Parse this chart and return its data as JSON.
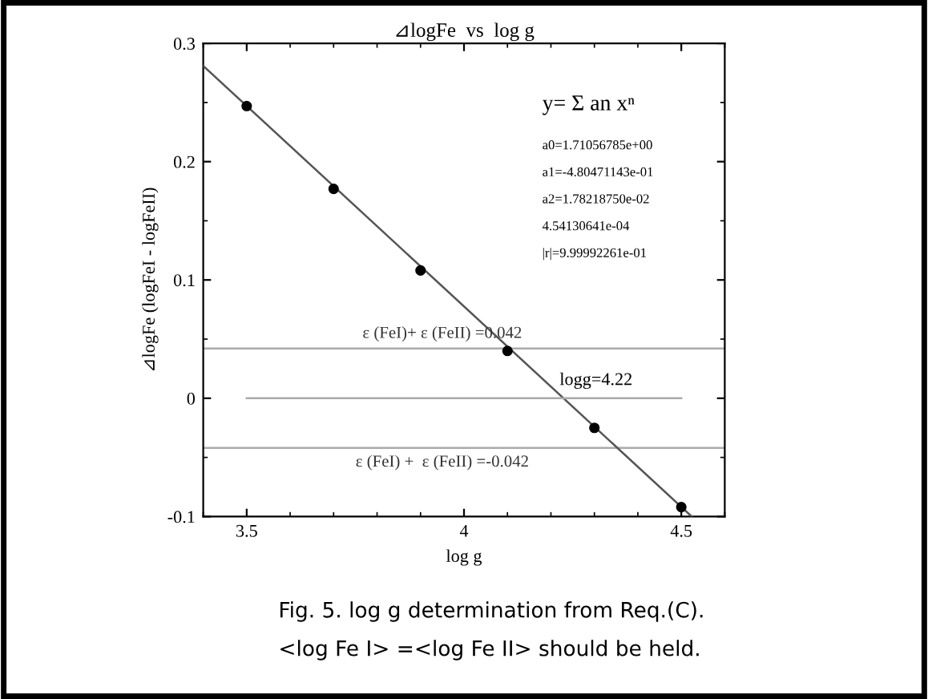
{
  "chart_data": {
    "type": "scatter",
    "title": "⊿logFe  vs  log g",
    "xlabel": "log g",
    "ylabel": "⊿logFe (logFeI - logFeII)",
    "series": [
      {
        "marker": "circle",
        "color": "#000000",
        "x": [
          3.5,
          3.7,
          3.9,
          4.1,
          4.3,
          4.5
        ],
        "values": [
          0.247,
          0.177,
          0.108,
          0.04,
          -0.025,
          -0.092
        ]
      },
      {
        "type": "line",
        "marker": "none",
        "color": "#555555",
        "x": [
          3.4,
          4.524
        ],
        "values": [
          0.281,
          -0.1
        ]
      },
      {
        "type": "line",
        "marker": "none",
        "color": "#aaaaaa",
        "x": [
          3.5,
          4.5
        ],
        "values": [
          0,
          0
        ]
      }
    ],
    "ref_lines": [
      {
        "axis": "y",
        "value": 0.042,
        "label": "ε (FeI)+ ε (FeII) =0.042",
        "color": "#aaaaaa"
      },
      {
        "axis": "y",
        "value": -0.042,
        "label": "ε (FeI) +  ε (FeII) =-0.042",
        "color": "#aaaaaa"
      }
    ],
    "annotations": [
      {
        "text": "logg=4.22",
        "x": 4.22,
        "y": 0
      },
      "y= Σ an xⁿ",
      "a0=1.71056785e+00",
      "a1=-4.80471143e-01",
      "a2=1.78218750e-02",
      "4.54130641e-04",
      "|r|=9.99992261e-01",
      "Fig. 5. log g determination from Req.(C).",
      "<log Fe I> =<log Fe II> should be held."
    ],
    "xlim": [
      3.4,
      4.6
    ],
    "ylim": [
      -0.1,
      0.3
    ],
    "xticks": [
      3.5,
      4,
      4.5
    ],
    "yticks": [
      -0.1,
      0,
      0.1,
      0.2,
      0.3
    ],
    "grid": false,
    "legend": false
  }
}
